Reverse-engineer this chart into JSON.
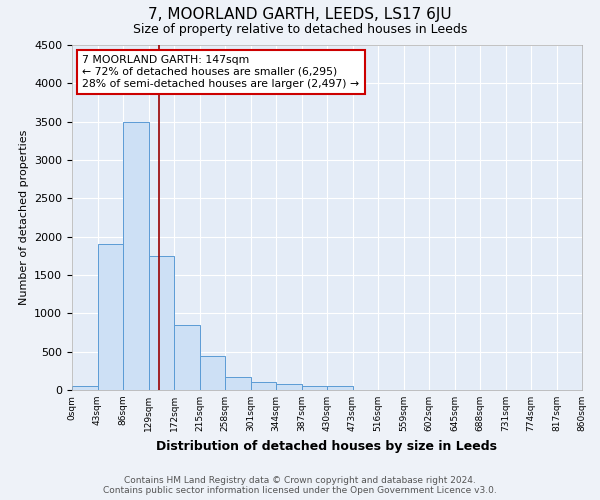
{
  "title": "7, MOORLAND GARTH, LEEDS, LS17 6JU",
  "subtitle": "Size of property relative to detached houses in Leeds",
  "xlabel": "Distribution of detached houses by size in Leeds",
  "ylabel": "Number of detached properties",
  "bin_labels": [
    "0sqm",
    "43sqm",
    "86sqm",
    "129sqm",
    "172sqm",
    "215sqm",
    "258sqm",
    "301sqm",
    "344sqm",
    "387sqm",
    "430sqm",
    "473sqm",
    "516sqm",
    "559sqm",
    "602sqm",
    "645sqm",
    "688sqm",
    "731sqm",
    "774sqm",
    "817sqm",
    "860sqm"
  ],
  "bar_values": [
    50,
    1900,
    3500,
    1750,
    850,
    450,
    175,
    100,
    75,
    50,
    50,
    0,
    0,
    0,
    0,
    0,
    0,
    0,
    0,
    0
  ],
  "bar_color": "#cde0f5",
  "bar_edge_color": "#5b9bd5",
  "property_sqm": 147,
  "red_line_color": "#990000",
  "annotation_text": "7 MOORLAND GARTH: 147sqm\n← 72% of detached houses are smaller (6,295)\n28% of semi-detached houses are larger (2,497) →",
  "annotation_box_color": "#ffffff",
  "annotation_box_edge": "#cc0000",
  "ylim": [
    0,
    4500
  ],
  "yticks": [
    0,
    500,
    1000,
    1500,
    2000,
    2500,
    3000,
    3500,
    4000,
    4500
  ],
  "footnote": "Contains HM Land Registry data © Crown copyright and database right 2024.\nContains public sector information licensed under the Open Government Licence v3.0.",
  "background_color": "#eef2f8",
  "plot_background": "#e4ecf7",
  "grid_color": "#ffffff",
  "title_fontsize": 11,
  "subtitle_fontsize": 9,
  "footnote_fontsize": 6.5
}
